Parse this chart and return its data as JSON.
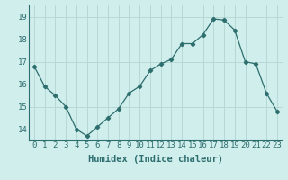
{
  "x": [
    0,
    1,
    2,
    3,
    4,
    5,
    6,
    7,
    8,
    9,
    10,
    11,
    12,
    13,
    14,
    15,
    16,
    17,
    18,
    19,
    20,
    21,
    22,
    23
  ],
  "y": [
    16.8,
    15.9,
    15.5,
    15.0,
    14.0,
    13.7,
    14.1,
    14.5,
    14.9,
    15.6,
    15.9,
    16.6,
    16.9,
    17.1,
    17.8,
    17.8,
    18.2,
    18.9,
    18.85,
    18.4,
    17.0,
    16.9,
    15.6,
    14.8
  ],
  "line_color": "#2d6e6e",
  "marker": "D",
  "marker_size": 2.2,
  "bg_color": "#d0eeec",
  "grid_color": "#b8d8d6",
  "xlabel": "Humidex (Indice chaleur)",
  "ylim": [
    13.5,
    19.5
  ],
  "xlim": [
    -0.5,
    23.5
  ],
  "yticks": [
    14,
    15,
    16,
    17,
    18,
    19
  ],
  "xticks": [
    0,
    1,
    2,
    3,
    4,
    5,
    6,
    7,
    8,
    9,
    10,
    11,
    12,
    13,
    14,
    15,
    16,
    17,
    18,
    19,
    20,
    21,
    22,
    23
  ],
  "xlabel_fontsize": 7.5,
  "tick_fontsize": 6.5,
  "tick_color": "#2d6e6e",
  "axis_color": "#2d6e6e"
}
